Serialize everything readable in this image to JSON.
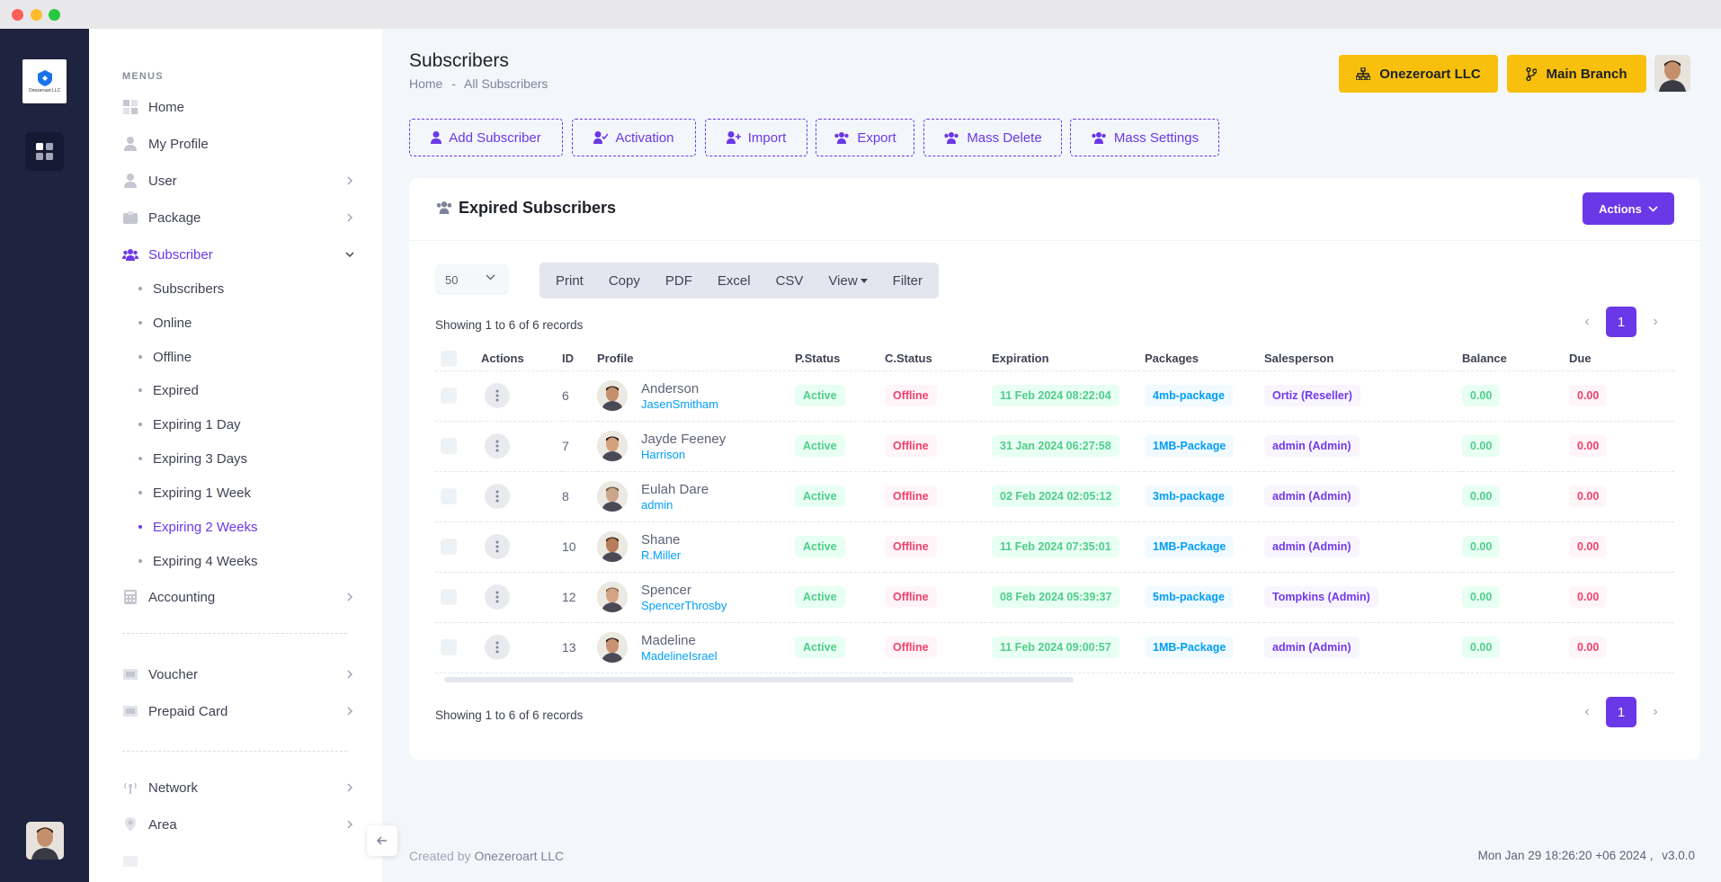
{
  "sidebar": {
    "logo_text": "Onezeroart LLC",
    "menu_heading": "MENUS",
    "items": [
      {
        "label": "Home",
        "icon": "home-icon"
      },
      {
        "label": "My Profile",
        "icon": "user-icon"
      },
      {
        "label": "User",
        "icon": "user-icon"
      },
      {
        "label": "Package",
        "icon": "package-icon"
      },
      {
        "label": "Subscriber",
        "icon": "users-icon"
      },
      {
        "label": "Accounting",
        "icon": "calculator-icon"
      },
      {
        "label": "Voucher",
        "icon": "voucher-icon"
      },
      {
        "label": "Prepaid Card",
        "icon": "card-icon"
      },
      {
        "label": "Network",
        "icon": "network-icon"
      },
      {
        "label": "Area",
        "icon": "map-pin-icon"
      }
    ],
    "subscriber_subitems": [
      "Subscribers",
      "Online",
      "Offline",
      "Expired",
      "Expiring 1 Day",
      "Expiring 3 Days",
      "Expiring 1 Week",
      "Expiring 2 Weeks",
      "Expiring 4 Weeks"
    ],
    "active_subitem": "Expiring 2 Weeks"
  },
  "header": {
    "title": "Subscribers",
    "breadcrumb": [
      "Home",
      "-",
      "All Subscribers"
    ],
    "org_button": "Onezeroart LLC",
    "branch_button": "Main Branch"
  },
  "toolbar": {
    "add": "Add Subscriber",
    "activation": "Activation",
    "import": "Import",
    "export": "Export",
    "mass_delete": "Mass Delete",
    "mass_settings": "Mass Settings"
  },
  "card": {
    "title": "Expired Subscribers",
    "actions": "Actions",
    "page_size": "50",
    "export_buttons": [
      "Print",
      "Copy",
      "PDF",
      "Excel",
      "CSV",
      "View",
      "Filter"
    ],
    "showing": "Showing 1 to 6 of 6 records",
    "current_page": "1"
  },
  "table": {
    "columns": [
      "Actions",
      "ID",
      "Profile",
      "P.Status",
      "C.Status",
      "Expiration",
      "Packages",
      "Salesperson",
      "Balance",
      "Due"
    ],
    "rows": [
      {
        "id": "6",
        "name": "Anderson",
        "username": "JasenSmitham",
        "pstatus": "Active",
        "cstatus": "Offline",
        "expiration": "11 Feb 2024 08:22:04",
        "package": "4mb-package",
        "salesperson": "Ortiz (Reseller)",
        "balance": "0.00",
        "due": "0.00"
      },
      {
        "id": "7",
        "name": "Jayde Feeney",
        "username": "Harrison",
        "pstatus": "Active",
        "cstatus": "Offline",
        "expiration": "31 Jan 2024 06:27:58",
        "package": "1MB-Package",
        "salesperson": "admin (Admin)",
        "balance": "0.00",
        "due": "0.00"
      },
      {
        "id": "8",
        "name": "Eulah Dare",
        "username": "admin",
        "pstatus": "Active",
        "cstatus": "Offline",
        "expiration": "02 Feb 2024 02:05:12",
        "package": "3mb-package",
        "salesperson": "admin (Admin)",
        "balance": "0.00",
        "due": "0.00"
      },
      {
        "id": "10",
        "name": "Shane",
        "username": "R.Miller",
        "pstatus": "Active",
        "cstatus": "Offline",
        "expiration": "11 Feb 2024 07:35:01",
        "package": "1MB-Package",
        "salesperson": "admin (Admin)",
        "balance": "0.00",
        "due": "0.00"
      },
      {
        "id": "12",
        "name": "Spencer",
        "username": "SpencerThrosby",
        "pstatus": "Active",
        "cstatus": "Offline",
        "expiration": "08 Feb 2024 05:39:37",
        "package": "5mb-package",
        "salesperson": "Tompkins (Admin)",
        "balance": "0.00",
        "due": "0.00"
      },
      {
        "id": "13",
        "name": "Madeline",
        "username": "MadelineIsrael",
        "pstatus": "Active",
        "cstatus": "Offline",
        "expiration": "11 Feb 2024 09:00:57",
        "package": "1MB-Package",
        "salesperson": "admin (Admin)",
        "balance": "0.00",
        "due": "0.00"
      }
    ]
  },
  "footer": {
    "created_by": "Created by",
    "company": "Onezeroart LLC",
    "timestamp": "Mon Jan 29 18:26:20 +06 2024 ,",
    "version": "v3.0.0"
  },
  "colors": {
    "accent": "#6b38e8",
    "sidebar_bg": "#1e2340",
    "org_button": "#f8c00c"
  }
}
